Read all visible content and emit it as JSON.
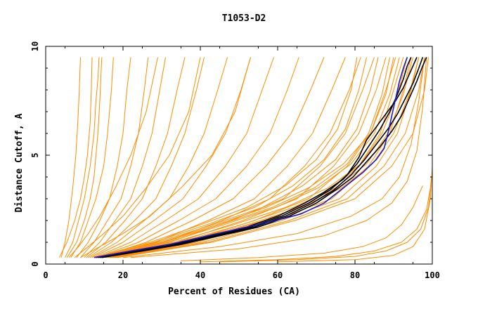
{
  "chart_data": {
    "type": "line",
    "title": "T1053-D2",
    "xlabel": "Percent of Residues (CA)",
    "ylabel": "Distance Cutoff, A",
    "xlim": [
      0,
      100
    ],
    "ylim": [
      0,
      10
    ],
    "xticks": [
      "0",
      "20",
      "40",
      "60",
      "80",
      "100"
    ],
    "yticks": [
      "0",
      "5",
      "10"
    ],
    "grid": false,
    "colors": {
      "bulk": "#ff8c00",
      "highlight_black": "#000000",
      "highlight_blue": "#1a1acc"
    },
    "series": [
      {
        "group": "bulk",
        "x": [
          3.5,
          5.5,
          7.5,
          9.0,
          10.0,
          10.8,
          11.5,
          11.8,
          12.0
        ],
        "y": [
          0.3,
          1.0,
          2.0,
          3.0,
          4.0,
          5.0,
          6.5,
          8.0,
          9.5
        ]
      },
      {
        "group": "bulk",
        "x": [
          5.0,
          7.0,
          8.5,
          10.0,
          11.5,
          12.5,
          13.0,
          13.5,
          13.8
        ],
        "y": [
          0.3,
          1.0,
          2.0,
          3.0,
          4.5,
          6.0,
          7.5,
          8.5,
          9.5
        ]
      },
      {
        "group": "bulk",
        "x": [
          5.5,
          8.0,
          10.0,
          11.5,
          12.5,
          13.0,
          13.5,
          14.0,
          14.5
        ],
        "y": [
          0.3,
          1.0,
          2.0,
          3.0,
          4.0,
          5.0,
          6.0,
          7.5,
          9.5
        ]
      },
      {
        "group": "bulk",
        "x": [
          6.5,
          9.0,
          11.0,
          13.0,
          15.0,
          16.0,
          17.0,
          17.5
        ],
        "y": [
          0.3,
          1.0,
          2.0,
          3.0,
          4.5,
          6.0,
          8.0,
          9.5
        ]
      },
      {
        "group": "bulk",
        "x": [
          8.0,
          11.0,
          14.0,
          16.5,
          18.5,
          20.0,
          21.0,
          22.0
        ],
        "y": [
          0.3,
          1.0,
          2.0,
          3.0,
          4.5,
          6.0,
          8.0,
          9.5
        ]
      },
      {
        "group": "bulk",
        "x": [
          9.0,
          12.5,
          16.0,
          19.5,
          22.0,
          24.0,
          25.5,
          26.5
        ],
        "y": [
          0.3,
          1.0,
          2.0,
          3.0,
          4.5,
          6.0,
          8.0,
          9.5
        ]
      },
      {
        "group": "bulk",
        "x": [
          10.0,
          14.0,
          18.0,
          22.0,
          25.0,
          27.5,
          29.5,
          31.0
        ],
        "y": [
          0.3,
          1.0,
          2.0,
          3.0,
          4.5,
          6.0,
          8.0,
          9.5
        ]
      },
      {
        "group": "bulk",
        "x": [
          10.5,
          15.5,
          20.5,
          25.0,
          28.5,
          31.5,
          34.0,
          36.0
        ],
        "y": [
          0.3,
          1.0,
          2.0,
          3.0,
          4.5,
          6.0,
          8.0,
          9.5
        ]
      },
      {
        "group": "bulk",
        "x": [
          11.0,
          17.0,
          23.0,
          28.5,
          32.5,
          36.0,
          39.0,
          41.0
        ],
        "y": [
          0.3,
          1.0,
          2.0,
          3.0,
          4.5,
          6.0,
          8.0,
          9.5
        ]
      },
      {
        "group": "bulk",
        "x": [
          11.5,
          18.5,
          25.5,
          32.0,
          37.0,
          41.0,
          44.5,
          47.0
        ],
        "y": [
          0.3,
          1.0,
          2.0,
          3.0,
          4.5,
          6.0,
          8.0,
          9.5
        ]
      },
      {
        "group": "bulk",
        "x": [
          12.0,
          20.0,
          28.0,
          35.5,
          41.5,
          46.5,
          50.5,
          53.0
        ],
        "y": [
          0.3,
          1.0,
          2.0,
          3.0,
          4.5,
          6.0,
          8.0,
          9.5
        ]
      },
      {
        "group": "bulk",
        "x": [
          12.5,
          22.0,
          31.0,
          39.5,
          46.5,
          52.0,
          56.0,
          59.0
        ],
        "y": [
          0.3,
          1.0,
          2.0,
          3.0,
          4.5,
          6.0,
          8.0,
          9.5
        ]
      },
      {
        "group": "bulk",
        "x": [
          13.0,
          24.0,
          34.5,
          44.0,
          52.0,
          58.0,
          62.5,
          65.5
        ],
        "y": [
          0.3,
          1.0,
          2.0,
          3.0,
          4.5,
          6.0,
          8.0,
          9.5
        ]
      },
      {
        "group": "bulk",
        "x": [
          13.5,
          26.0,
          38.0,
          48.5,
          57.0,
          63.5,
          68.5,
          72.0
        ],
        "y": [
          0.3,
          1.0,
          2.0,
          3.0,
          4.5,
          6.0,
          8.0,
          9.5
        ]
      },
      {
        "group": "bulk",
        "x": [
          14.0,
          28.5,
          42.0,
          54.0,
          62.5,
          69.0,
          74.0,
          77.5
        ],
        "y": [
          0.3,
          1.0,
          2.0,
          3.0,
          4.5,
          6.0,
          8.0,
          9.5
        ]
      },
      {
        "group": "bulk",
        "x": [
          14.5,
          30.5,
          45.5,
          58.0,
          67.0,
          73.5,
          78.5,
          81.5
        ],
        "y": [
          0.3,
          1.0,
          2.0,
          3.0,
          4.5,
          6.0,
          8.0,
          9.5
        ]
      },
      {
        "group": "bulk",
        "x": [
          15.0,
          32.0,
          48.0,
          61.5,
          71.0,
          77.5,
          82.0,
          85.0
        ],
        "y": [
          0.3,
          1.0,
          2.0,
          3.0,
          4.5,
          6.0,
          8.0,
          9.5
        ]
      },
      {
        "group": "bulk",
        "x": [
          15.5,
          34.0,
          51.0,
          65.0,
          74.5,
          81.0,
          85.5,
          88.0
        ],
        "y": [
          0.3,
          1.0,
          2.0,
          3.0,
          4.5,
          6.0,
          8.0,
          9.5
        ]
      },
      {
        "group": "bulk",
        "x": [
          16.0,
          36.0,
          54.0,
          68.0,
          78.0,
          84.0,
          88.0,
          90.5
        ],
        "y": [
          0.3,
          1.0,
          2.0,
          3.0,
          4.5,
          6.0,
          8.0,
          9.5
        ]
      },
      {
        "group": "bulk",
        "x": [
          16.5,
          37.5,
          56.5,
          71.0,
          81.0,
          86.5,
          90.0,
          92.5
        ],
        "y": [
          0.3,
          1.0,
          2.0,
          3.0,
          4.5,
          6.0,
          8.0,
          9.5
        ]
      },
      {
        "group": "bulk",
        "x": [
          17.0,
          39.0,
          59.0,
          74.0,
          83.5,
          89.0,
          92.5,
          94.5
        ],
        "y": [
          0.3,
          1.0,
          2.0,
          3.0,
          4.5,
          6.0,
          8.0,
          9.5
        ]
      },
      {
        "group": "bulk",
        "x": [
          17.5,
          40.5,
          61.0,
          76.0,
          85.5,
          91.0,
          94.5,
          96.5
        ],
        "y": [
          0.3,
          1.0,
          2.0,
          3.0,
          4.5,
          6.0,
          8.0,
          9.5
        ]
      },
      {
        "group": "bulk",
        "x": [
          18.0,
          42.0,
          63.0,
          78.0,
          87.5,
          93.0,
          96.5,
          98.0
        ],
        "y": [
          0.3,
          1.0,
          2.0,
          3.0,
          4.5,
          6.0,
          8.0,
          9.5
        ]
      },
      {
        "group": "bulk",
        "x": [
          18.5,
          43.0,
          64.5,
          80.0,
          89.5,
          95.0,
          98.0,
          99.0
        ],
        "y": [
          0.3,
          1.0,
          2.0,
          3.0,
          4.5,
          6.0,
          8.0,
          9.5
        ]
      },
      {
        "group": "bulk",
        "x": [
          14.0,
          30.0,
          44.0,
          57.0,
          68.0,
          77.0,
          84.0,
          88.0,
          90.0
        ],
        "y": [
          0.3,
          1.0,
          1.8,
          2.6,
          3.5,
          4.6,
          6.0,
          7.8,
          9.5
        ]
      },
      {
        "group": "bulk",
        "x": [
          13.5,
          29.0,
          43.0,
          56.0,
          66.5,
          75.0,
          80.5,
          84.0,
          86.0
        ],
        "y": [
          0.3,
          1.0,
          1.8,
          2.6,
          3.6,
          4.8,
          6.2,
          8.0,
          9.5
        ]
      },
      {
        "group": "bulk",
        "x": [
          15.0,
          31.5,
          46.0,
          59.5,
          70.5,
          79.0,
          85.0,
          89.0,
          91.5
        ],
        "y": [
          0.3,
          1.0,
          1.8,
          2.6,
          3.5,
          4.6,
          6.0,
          7.8,
          9.5
        ]
      },
      {
        "group": "bulk",
        "x": [
          14.5,
          30.5,
          45.0,
          58.5,
          69.5,
          78.0,
          83.5,
          87.0,
          89.0
        ],
        "y": [
          0.3,
          1.0,
          1.8,
          2.6,
          3.5,
          4.6,
          6.0,
          7.8,
          9.5
        ]
      },
      {
        "group": "bulk",
        "x": [
          16.0,
          33.0,
          48.5,
          62.0,
          73.0,
          81.5,
          87.0,
          91.0,
          93.5
        ],
        "y": [
          0.3,
          1.0,
          1.8,
          2.6,
          3.5,
          4.6,
          6.0,
          7.8,
          9.5
        ]
      },
      {
        "group": "bulk",
        "x": [
          16.5,
          34.5,
          50.5,
          64.0,
          75.0,
          83.0,
          88.5,
          92.5,
          95.0
        ],
        "y": [
          0.3,
          1.0,
          1.8,
          2.6,
          3.5,
          4.6,
          6.0,
          7.8,
          9.5
        ]
      },
      {
        "group": "bulk",
        "x": [
          17.0,
          35.5,
          52.0,
          66.0,
          76.5,
          84.5,
          90.0,
          94.0,
          96.5
        ],
        "y": [
          0.3,
          1.0,
          1.8,
          2.6,
          3.5,
          4.6,
          6.0,
          7.8,
          9.5
        ]
      },
      {
        "group": "bulk",
        "x": [
          13.0,
          28.0,
          41.5,
          54.0,
          64.0,
          72.0,
          77.5,
          81.0,
          83.0
        ],
        "y": [
          0.3,
          1.0,
          1.8,
          2.6,
          3.6,
          4.8,
          6.2,
          8.0,
          9.5
        ]
      },
      {
        "group": "bulk",
        "x": [
          12.5,
          27.0,
          40.0,
          52.0,
          62.0,
          70.0,
          75.5,
          79.0,
          80.5
        ],
        "y": [
          0.3,
          1.0,
          1.8,
          2.6,
          3.6,
          4.8,
          6.2,
          8.0,
          9.5
        ]
      },
      {
        "group": "bulk",
        "x": [
          20.0,
          45.0,
          65.0,
          79.0,
          87.0,
          91.5,
          94.5,
          96.5,
          98.0
        ],
        "y": [
          0.3,
          0.8,
          1.4,
          2.2,
          3.0,
          4.0,
          5.5,
          7.5,
          9.5
        ]
      },
      {
        "group": "bulk",
        "x": [
          22.0,
          50.0,
          72.0,
          83.0,
          89.5,
          93.5,
          96.0,
          97.5,
          98.5
        ],
        "y": [
          0.3,
          0.7,
          1.3,
          2.0,
          2.8,
          3.8,
          5.2,
          7.2,
          9.5
        ]
      },
      {
        "group": "bulk",
        "x": [
          40.0,
          60.0,
          75.0,
          85.0,
          92.0,
          96.0,
          98.5,
          99.5
        ],
        "y": [
          0.1,
          0.2,
          0.35,
          0.6,
          1.0,
          1.6,
          2.5,
          3.5
        ]
      },
      {
        "group": "bulk",
        "x": [
          45.0,
          65.0,
          80.0,
          88.0,
          93.5,
          97.0,
          99.0,
          99.8
        ],
        "y": [
          0.1,
          0.2,
          0.35,
          0.6,
          1.0,
          1.6,
          2.6,
          4.0
        ]
      },
      {
        "group": "bulk",
        "x": [
          35.0,
          55.0,
          72.0,
          82.0,
          88.0,
          92.0,
          95.0,
          97.5
        ],
        "y": [
          0.15,
          0.3,
          0.5,
          0.8,
          1.2,
          1.8,
          2.6,
          3.6
        ]
      },
      {
        "group": "bulk",
        "x": [
          60.0,
          80.0,
          90.0,
          95.0,
          98.0,
          99.5,
          100.0
        ],
        "y": [
          0.1,
          0.2,
          0.4,
          0.8,
          1.6,
          3.0,
          4.5
        ]
      },
      {
        "group": "bulk",
        "x": [
          4.0,
          5.0,
          6.0,
          7.0,
          7.8,
          8.3,
          8.7,
          9.0
        ],
        "y": [
          0.3,
          1.0,
          2.0,
          3.5,
          5.0,
          6.5,
          8.0,
          9.5
        ]
      },
      {
        "group": "bulk",
        "x": [
          6.0,
          8.5,
          11.0,
          14.0,
          18.0,
          22.0,
          26.0,
          29.0
        ],
        "y": [
          0.3,
          0.8,
          1.4,
          2.2,
          3.5,
          5.0,
          7.0,
          9.5
        ]
      },
      {
        "group": "bulk",
        "x": [
          7.5,
          11.0,
          15.0,
          20.0,
          26.0,
          32.0,
          37.0,
          40.0
        ],
        "y": [
          0.3,
          0.8,
          1.4,
          2.2,
          3.5,
          5.0,
          7.0,
          9.5
        ]
      },
      {
        "group": "bulk",
        "x": [
          9.0,
          14.0,
          20.0,
          27.0,
          35.0,
          43.0,
          49.0,
          53.0
        ],
        "y": [
          0.3,
          0.8,
          1.4,
          2.2,
          3.5,
          5.0,
          7.0,
          9.5
        ]
      },
      {
        "group": "highlight_black",
        "x": [
          13.0,
          22.0,
          32.0,
          42.0,
          52.0,
          60.0,
          67.0,
          72.0,
          77.0,
          80.5,
          83.5,
          86.5,
          89.0,
          91.0,
          92.5,
          93.5,
          94.5
        ],
        "y": [
          0.3,
          0.6,
          0.9,
          1.3,
          1.7,
          2.2,
          2.8,
          3.3,
          3.9,
          4.6,
          5.4,
          6.2,
          7.0,
          7.8,
          8.5,
          9.1,
          9.5
        ]
      },
      {
        "group": "highlight_black",
        "x": [
          13.5,
          23.0,
          33.0,
          43.0,
          53.0,
          61.0,
          68.0,
          73.5,
          78.0,
          81.0,
          83.0,
          85.5,
          88.0,
          90.5,
          92.5,
          94.5,
          96.0
        ],
        "y": [
          0.3,
          0.6,
          0.9,
          1.3,
          1.7,
          2.2,
          2.8,
          3.4,
          4.1,
          4.9,
          5.7,
          6.3,
          6.9,
          7.5,
          8.1,
          8.9,
          9.5
        ]
      },
      {
        "group": "highlight_black",
        "x": [
          14.0,
          24.0,
          34.0,
          44.0,
          54.0,
          62.0,
          69.0,
          74.5,
          79.0,
          82.5,
          85.5,
          88.5,
          91.0,
          93.0,
          95.0,
          96.5,
          97.5
        ],
        "y": [
          0.3,
          0.6,
          0.9,
          1.3,
          1.7,
          2.2,
          2.8,
          3.4,
          4.1,
          4.8,
          5.5,
          6.2,
          6.9,
          7.6,
          8.3,
          9.0,
          9.5
        ]
      },
      {
        "group": "highlight_black",
        "x": [
          14.5,
          25.0,
          35.0,
          45.0,
          55.0,
          63.0,
          70.0,
          75.0,
          79.5,
          83.0,
          86.5,
          89.5,
          92.0,
          94.0,
          96.0,
          97.5,
          98.5
        ],
        "y": [
          0.3,
          0.6,
          0.9,
          1.3,
          1.7,
          2.2,
          2.8,
          3.4,
          4.0,
          4.7,
          5.4,
          6.1,
          6.8,
          7.6,
          8.4,
          9.1,
          9.5
        ]
      },
      {
        "group": "highlight_blue",
        "x": [
          12.5,
          22.0,
          32.0,
          42.0,
          52.0,
          59.5,
          66.0,
          72.0,
          77.0,
          82.0,
          85.5,
          87.5,
          88.5,
          89.5,
          90.5,
          91.5,
          92.5,
          93.5
        ],
        "y": [
          0.3,
          0.6,
          0.9,
          1.3,
          1.7,
          2.0,
          2.3,
          2.8,
          3.5,
          4.2,
          4.8,
          5.3,
          6.0,
          6.8,
          7.6,
          8.4,
          9.0,
          9.5
        ]
      }
    ]
  }
}
